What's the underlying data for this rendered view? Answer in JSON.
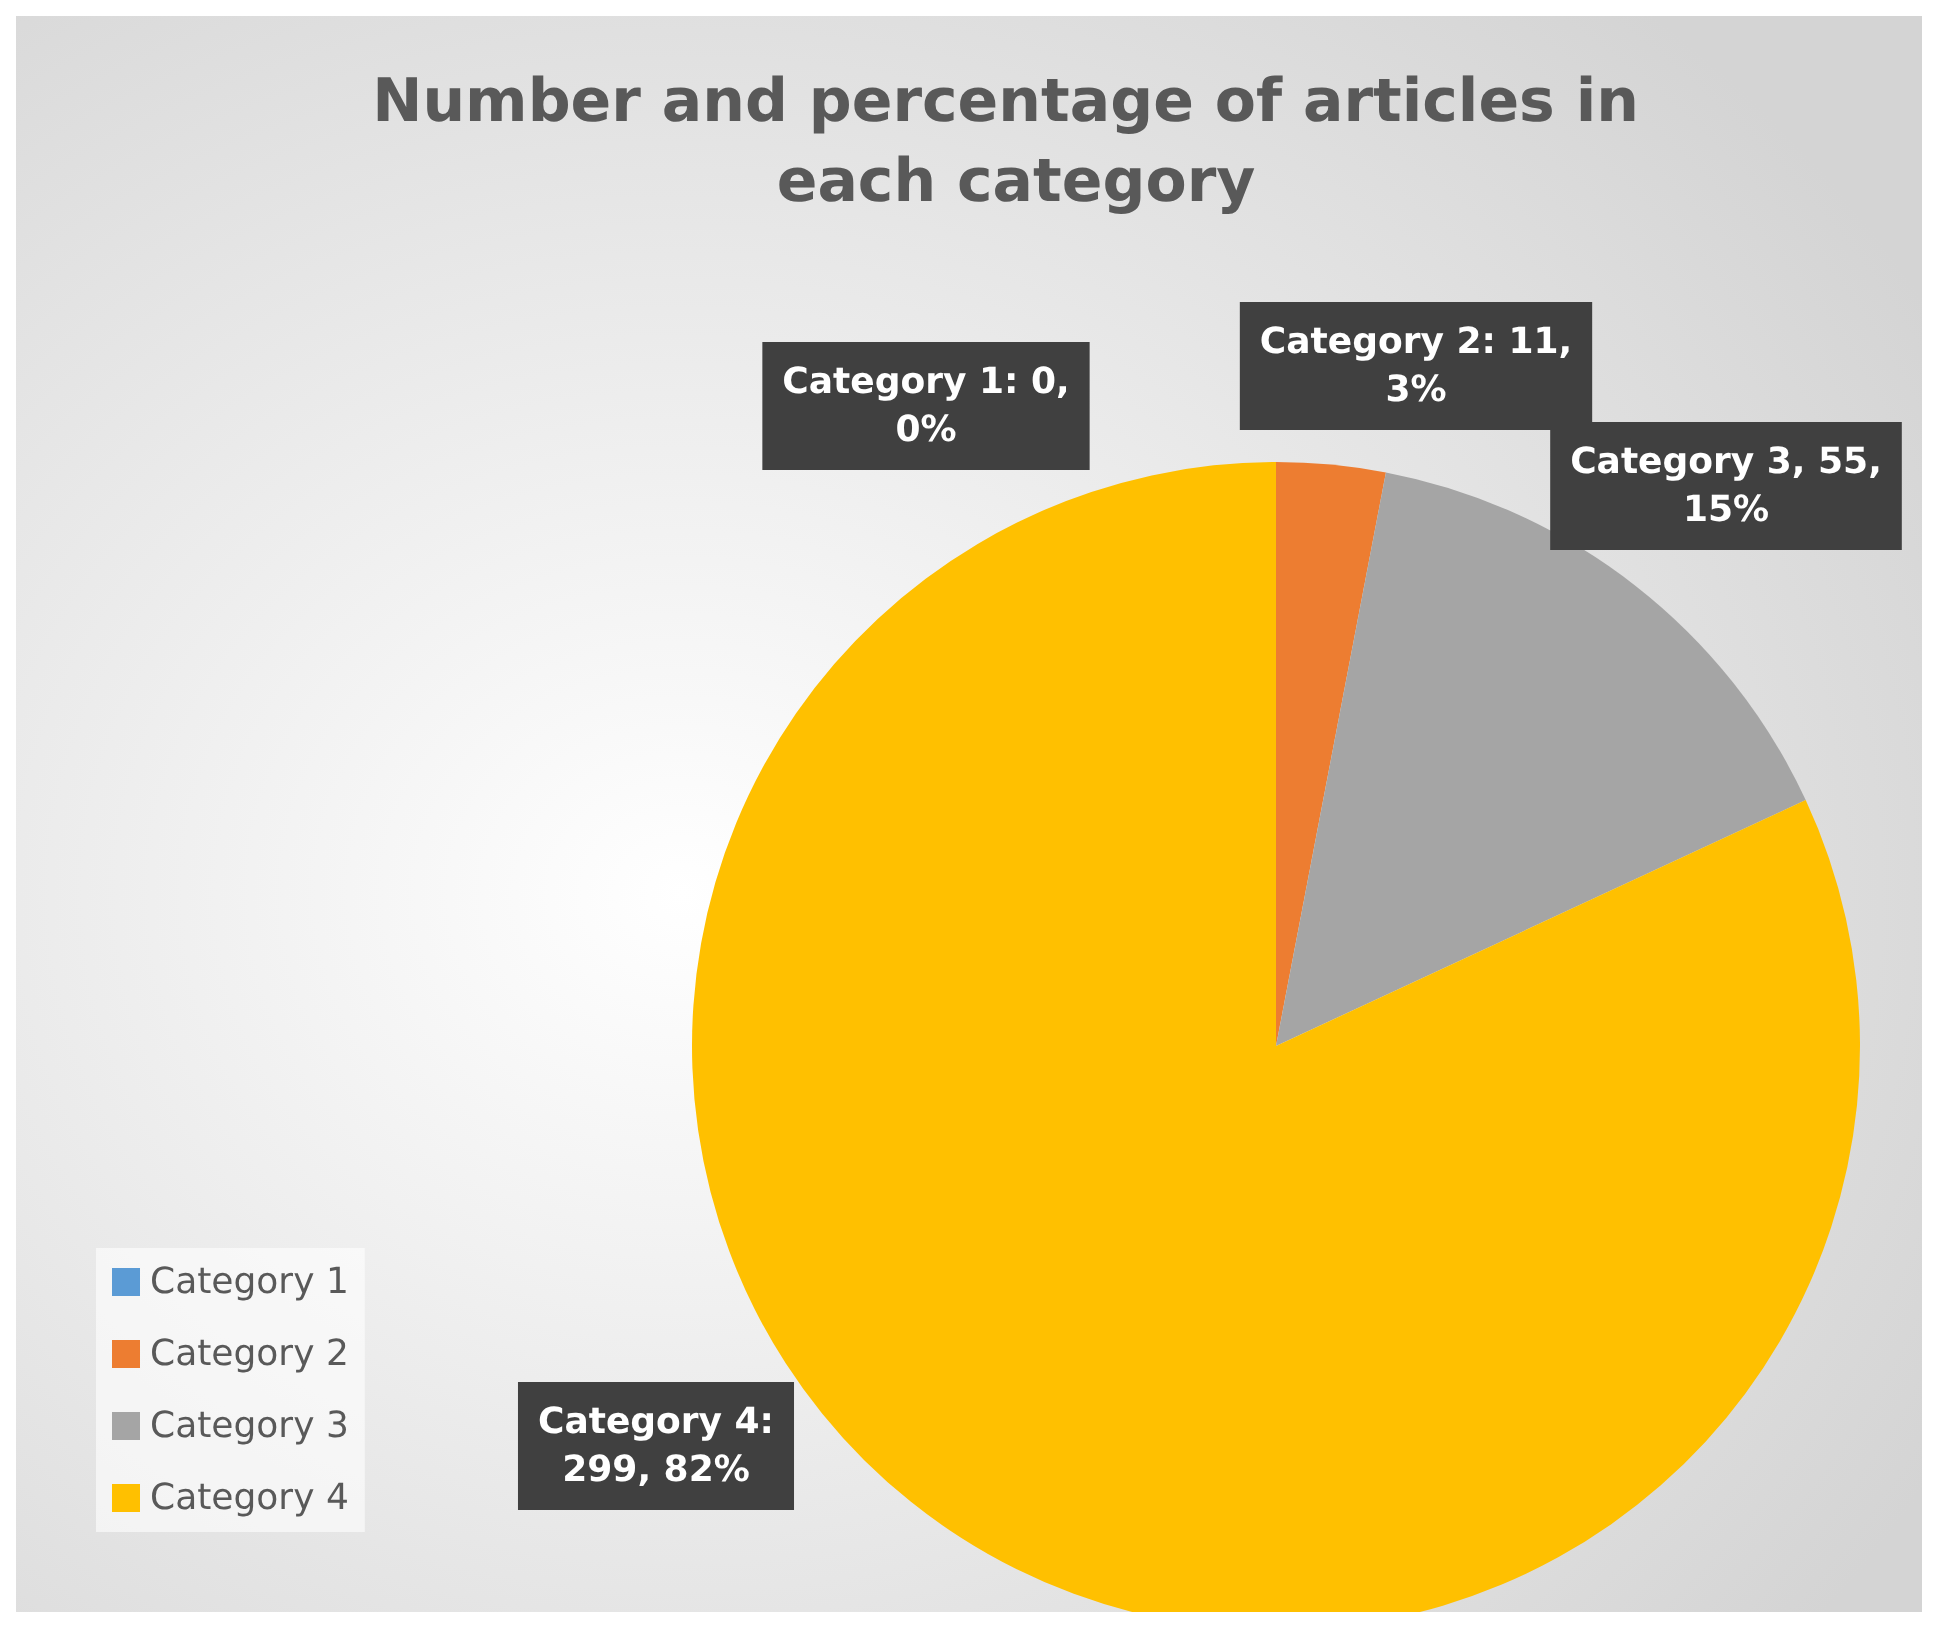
{
  "chart_data": {
    "type": "pie",
    "title": "Number and percentage of articles in each category",
    "categories": [
      "Category 1",
      "Category 2",
      "Category 3",
      "Category 4"
    ],
    "values": [
      0,
      11,
      55,
      299
    ],
    "colors": [
      "#5b9bd5",
      "#ed7d31",
      "#a5a5a5",
      "#ffc000"
    ],
    "value_labels": [
      "Category 1: 0,\n0%",
      "Category 2: 11,\n3%",
      "Category 3, 55,\n15%",
      "Category 4:\n299, 82%"
    ],
    "legend": "bottom left"
  }
}
